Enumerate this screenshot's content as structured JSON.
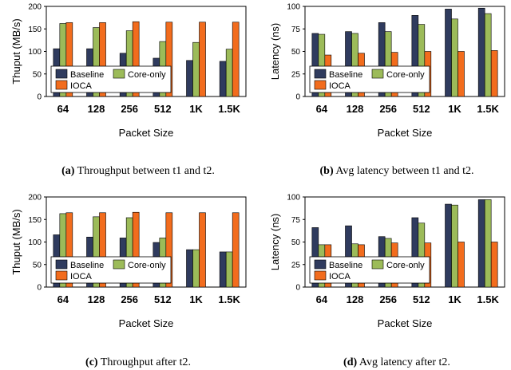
{
  "colors": {
    "Baseline": "#2f3b5e",
    "Core-only": "#9cbb59",
    "IOCA": "#f26c1d"
  },
  "chart_data": [
    {
      "type": "bar",
      "categories": [
        "64",
        "128",
        "256",
        "512",
        "1K",
        "1.5K"
      ],
      "series": [
        {
          "name": "Baseline",
          "values": [
            106,
            106,
            96,
            85,
            80,
            78
          ]
        },
        {
          "name": "Core-only",
          "values": [
            162,
            153,
            146,
            122,
            120,
            105
          ]
        },
        {
          "name": "IOCA",
          "values": [
            164,
            164,
            166,
            165,
            165,
            165
          ]
        }
      ],
      "xlabel": "Packet Size",
      "ylabel": "Thuput (MB/s)",
      "ylim": [
        0,
        200
      ],
      "yticks": [
        "0",
        "50",
        "100",
        "150",
        "200"
      ],
      "legend": "bottom-left",
      "caption": {
        "label": "(a)",
        "text": "Throughput between t1 and t2."
      }
    },
    {
      "type": "bar",
      "categories": [
        "64",
        "128",
        "256",
        "512",
        "1K",
        "1.5K"
      ],
      "series": [
        {
          "name": "Baseline",
          "values": [
            70,
            72,
            82,
            90,
            97,
            98
          ]
        },
        {
          "name": "Core-only",
          "values": [
            69,
            70,
            72,
            80,
            86,
            92
          ]
        },
        {
          "name": "IOCA",
          "values": [
            46,
            48,
            49,
            50,
            50,
            51
          ]
        }
      ],
      "xlabel": "Packet Size",
      "ylabel": "Latency (ns)",
      "ylim": [
        0,
        100
      ],
      "yticks": [
        "0",
        "25",
        "50",
        "75",
        "100"
      ],
      "legend": "bottom-left",
      "caption": {
        "label": "(b)",
        "text": "Avg latency between t1 and t2."
      }
    },
    {
      "type": "bar",
      "categories": [
        "64",
        "128",
        "256",
        "512",
        "1K",
        "1.5K"
      ],
      "series": [
        {
          "name": "Baseline",
          "values": [
            116,
            111,
            109,
            99,
            83,
            78
          ]
        },
        {
          "name": "Core-only",
          "values": [
            163,
            156,
            154,
            109,
            83,
            78
          ]
        },
        {
          "name": "IOCA",
          "values": [
            165,
            165,
            166,
            165,
            165,
            165
          ]
        }
      ],
      "xlabel": "Packet Size",
      "ylabel": "Thuput (MB/s)",
      "ylim": [
        0,
        200
      ],
      "yticks": [
        "0",
        "50",
        "100",
        "150",
        "200"
      ],
      "legend": "bottom-left",
      "caption": {
        "label": "(c)",
        "text": "Throughput after t2."
      }
    },
    {
      "type": "bar",
      "categories": [
        "64",
        "128",
        "256",
        "512",
        "1K",
        "1.5K"
      ],
      "series": [
        {
          "name": "Baseline",
          "values": [
            66,
            68,
            56,
            77,
            92,
            97
          ]
        },
        {
          "name": "Core-only",
          "values": [
            47,
            48,
            54,
            71,
            91,
            97
          ]
        },
        {
          "name": "IOCA",
          "values": [
            47,
            47,
            49,
            49,
            50,
            50
          ]
        }
      ],
      "xlabel": "Packet Size",
      "ylabel": "Latency (ns)",
      "ylim": [
        0,
        100
      ],
      "yticks": [
        "0",
        "25",
        "50",
        "75",
        "100"
      ],
      "legend": "bottom-left",
      "caption": {
        "label": "(d)",
        "text": "Avg latency after t2."
      }
    }
  ]
}
